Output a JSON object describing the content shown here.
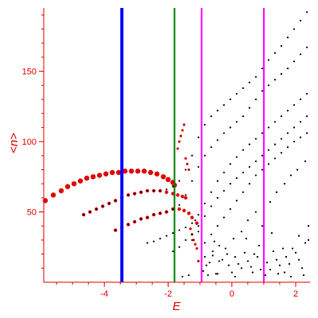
{
  "chart_data": {
    "type": "scatter",
    "xlabel": "E",
    "ylabel": "<n>",
    "xlim": [
      -5.9,
      2.45
    ],
    "ylim": [
      0,
      195
    ],
    "x_ticks": [
      -4,
      -2,
      0,
      2
    ],
    "x_tick_labels": [
      "-4",
      "-2",
      "0",
      "2"
    ],
    "y_ticks": [
      50,
      100,
      150
    ],
    "y_tick_labels": [
      "50",
      "100",
      "150"
    ],
    "grid": false,
    "colors": {
      "axes": "#e00000",
      "highlighted": "#e00000",
      "background_points": "#000000"
    },
    "vertical_lines": [
      {
        "x": -3.45,
        "color": "#0000ff"
      },
      {
        "x": -1.8,
        "color": "#008000"
      },
      {
        "x": -0.95,
        "color": "#ff00ff"
      },
      {
        "x": 1.0,
        "color": "#ff00ff"
      }
    ],
    "series": [
      {
        "color": "#e00000",
        "marker": "large",
        "x": [
          -5.85,
          -5.6,
          -5.35,
          -5.15,
          -4.95,
          -4.75,
          -4.55,
          -4.35,
          -4.15,
          -3.95,
          -3.75,
          -3.55,
          -3.35,
          -3.15,
          -2.95,
          -2.75,
          -2.55,
          -2.35,
          -2.15,
          -2.0,
          -1.85,
          -1.8
        ],
        "y": [
          58,
          62,
          65,
          68,
          70,
          72,
          74,
          75,
          76,
          77,
          78,
          78,
          79,
          79,
          79,
          79,
          78,
          77,
          75,
          73,
          71,
          69
        ]
      },
      {
        "color": "#e00000",
        "marker": "medium",
        "x": [
          -4.65,
          -4.45,
          -4.25,
          -4.05,
          -3.85,
          -3.65,
          -3.45,
          -3.25,
          -3.05,
          -2.85,
          -2.65,
          -2.45,
          -2.25,
          -2.05,
          -1.85,
          -1.7,
          -1.55,
          -1.45
        ],
        "y": [
          48,
          50,
          52,
          54,
          56,
          58,
          60,
          62,
          63,
          64,
          65,
          65,
          65,
          64,
          63,
          62,
          61,
          60
        ]
      },
      {
        "color": "#e00000",
        "marker": "medium",
        "x": [
          -3.65,
          -3.45,
          -3.25,
          -3.05,
          -2.85,
          -2.65,
          -2.45,
          -2.25,
          -2.05,
          -1.85,
          -1.65,
          -1.5,
          -1.35,
          -1.25,
          -1.1
        ],
        "y": [
          37,
          39,
          41,
          43,
          45,
          46,
          48,
          49,
          50,
          52,
          52,
          51,
          49,
          46,
          42
        ]
      },
      {
        "color": "#e00000",
        "marker": "small",
        "x": [
          -1.7,
          -1.65,
          -1.6,
          -1.55,
          -1.5,
          -1.45,
          -1.4,
          -1.35,
          -1.3,
          -1.25,
          -1.2,
          -1.15,
          -1.1,
          -1.05
        ],
        "y": [
          95,
          100,
          104,
          108,
          112,
          88,
          84,
          80,
          38,
          34,
          30,
          27,
          24,
          15
        ]
      },
      {
        "color": "#000000",
        "marker": "tiny",
        "x": [
          -4.65,
          -4.45,
          -4.25,
          -4.05,
          -3.85,
          -3.65,
          -3.45,
          -3.25,
          -3.05,
          -2.85,
          -2.65,
          -2.45,
          -2.25,
          -2.05,
          -1.85,
          -1.65,
          -1.45,
          -1.25,
          -1.05,
          -0.85,
          -0.65,
          -0.45,
          -0.25,
          -0.05,
          0.15,
          0.35,
          0.55,
          0.75,
          0.95,
          1.15,
          1.35,
          1.55,
          1.75,
          1.95,
          2.15,
          2.35
        ],
        "y": [
          48,
          50,
          52,
          54,
          56,
          58,
          60,
          62,
          63,
          64,
          65,
          65,
          65,
          66,
          68,
          72,
          80,
          90,
          103,
          112,
          118,
          122,
          126,
          130,
          134,
          138,
          142,
          146,
          152,
          158,
          163,
          168,
          174,
          180,
          186,
          192
        ]
      },
      {
        "color": "#000000",
        "marker": "tiny",
        "x": [
          -3.65,
          -3.45,
          -3.25,
          -3.05,
          -2.85,
          -2.65,
          -2.45,
          -2.25,
          -2.05,
          -1.85,
          -1.65,
          -1.45,
          -1.25,
          -1.05,
          -0.85,
          -0.65,
          -0.45,
          -0.25,
          -0.05,
          0.15,
          0.35,
          0.55,
          0.75,
          0.95,
          1.15,
          1.35,
          1.55,
          1.75,
          1.95,
          2.15,
          2.35
        ],
        "y": [
          37,
          39,
          41,
          43,
          45,
          46,
          48,
          49,
          50,
          52,
          55,
          62,
          72,
          82,
          90,
          96,
          101,
          106,
          110,
          114,
          118,
          124,
          130,
          136,
          140,
          144,
          148,
          152,
          157,
          162,
          167
        ]
      },
      {
        "color": "#000000",
        "marker": "tiny",
        "x": [
          -2.65,
          -2.45,
          -2.25,
          -2.05,
          -1.85,
          -1.65,
          -1.45,
          -1.25,
          -1.05,
          -0.85,
          -0.65,
          -0.45,
          -0.25,
          -0.05,
          0.15,
          0.35,
          0.55,
          0.75,
          0.95,
          1.15,
          1.35,
          1.55,
          1.75,
          1.95,
          2.15,
          2.35
        ],
        "y": [
          28,
          29,
          31,
          33,
          35,
          37,
          39,
          42,
          48,
          56,
          64,
          72,
          78,
          84,
          89,
          94,
          98,
          102,
          106,
          110,
          114,
          118,
          122,
          126,
          130,
          134
        ]
      },
      {
        "color": "#000000",
        "marker": "tiny",
        "x": [
          -1.85,
          -1.65,
          -1.45,
          -1.25,
          -1.05,
          -0.85,
          -0.65,
          -0.45,
          -0.25,
          -0.05,
          0.15,
          0.35,
          0.55,
          0.75,
          0.95,
          1.15,
          1.35,
          1.55,
          1.75,
          1.95,
          2.15,
          2.35
        ],
        "y": [
          22,
          25,
          30,
          34,
          40,
          47,
          54,
          60,
          65,
          70,
          74,
          78,
          82,
          86,
          90,
          94,
          98,
          102,
          106,
          110,
          114,
          118
        ]
      },
      {
        "color": "#000000",
        "marker": "tiny",
        "x": [
          -1.25,
          -1.05,
          -0.85,
          -0.65,
          -0.45,
          -0.25,
          -0.05,
          0.15,
          0.35,
          0.55,
          0.75,
          0.95,
          1.15,
          1.35,
          1.55,
          1.75,
          1.95,
          2.15,
          2.35
        ],
        "y": [
          30,
          36,
          28,
          34,
          40,
          46,
          52,
          58,
          64,
          70,
          76,
          80,
          84,
          88,
          92,
          96,
          100,
          103,
          106
        ]
      },
      {
        "color": "#000000",
        "marker": "tiny",
        "x": [
          -0.85,
          -0.6,
          -0.4,
          -0.15,
          0.05,
          0.3,
          0.5,
          0.75,
          0.95,
          1.2,
          1.4,
          1.65,
          1.85,
          2.05,
          2.3
        ],
        "y": [
          18,
          22,
          26,
          20,
          31,
          36,
          44,
          50,
          40,
          57,
          64,
          70,
          76,
          80,
          86
        ]
      },
      {
        "color": "#000000",
        "marker": "tiny",
        "x": [
          -0.9,
          -0.7,
          -0.5,
          -0.3,
          -0.1,
          0.1,
          0.3,
          0.5,
          0.7,
          0.9,
          1.1,
          1.3,
          1.5,
          1.7,
          1.9,
          2.1,
          2.3,
          -0.8,
          -0.6,
          -0.4,
          -0.2,
          0.0,
          0.2,
          0.4,
          0.6,
          0.8,
          1.0,
          1.2,
          1.4,
          1.6,
          1.8,
          2.0,
          2.2,
          2.4
        ],
        "y": [
          8,
          14,
          6,
          16,
          12,
          18,
          10,
          15,
          20,
          9,
          14,
          22,
          12,
          18,
          24,
          16,
          28,
          12,
          19,
          15,
          24,
          7,
          13,
          21,
          11,
          18,
          26,
          9,
          16,
          24,
          13,
          21,
          10,
          30
        ]
      },
      {
        "color": "#000000",
        "marker": "tiny",
        "x": [
          -1.55,
          -1.35,
          -0.75,
          -0.45,
          0.1,
          0.65,
          1.05,
          1.45,
          1.85,
          2.25,
          -0.55,
          0.45,
          1.25,
          2.1,
          -1.15,
          0.85,
          1.65,
          2.4
        ],
        "y": [
          4,
          5,
          5,
          6,
          4,
          7,
          5,
          6,
          4,
          5,
          29,
          31,
          35,
          33,
          44,
          26,
          7,
          40
        ]
      }
    ]
  }
}
